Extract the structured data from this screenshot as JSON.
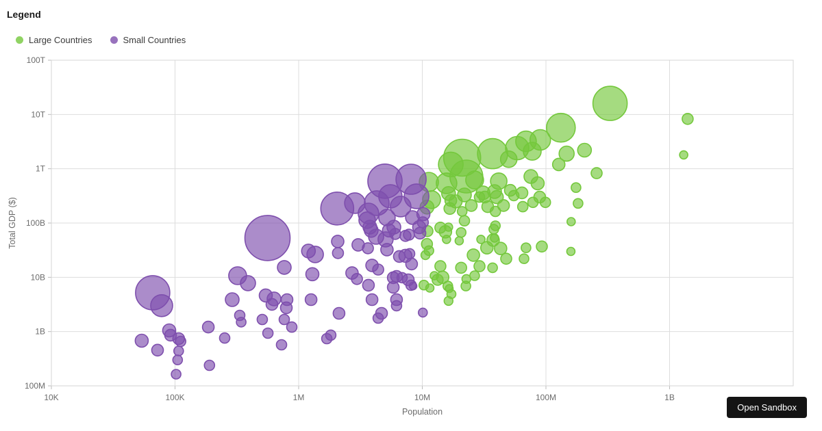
{
  "legend": {
    "title": "Legend"
  },
  "button": {
    "open_sandbox": "Open Sandbox"
  },
  "chart_data": {
    "type": "scatter",
    "subtype": "bubble-log-log",
    "xlabel": "Population",
    "ylabel": "Total GDP ($)",
    "grid": true,
    "legend_position": "top-left",
    "x_scale": "log",
    "y_scale": "log",
    "x_range": [
      10000,
      10000000000
    ],
    "y_range": [
      100000000,
      100000000000000
    ],
    "x_ticks": [
      {
        "label": "10K",
        "value": 10000
      },
      {
        "label": "100K",
        "value": 100000
      },
      {
        "label": "1M",
        "value": 1000000
      },
      {
        "label": "10M",
        "value": 10000000
      },
      {
        "label": "100M",
        "value": 100000000
      },
      {
        "label": "1B",
        "value": 1000000000
      }
    ],
    "y_ticks": [
      {
        "label": "100M",
        "value": 100000000.0
      },
      {
        "label": "1B",
        "value": 1000000000.0
      },
      {
        "label": "10B",
        "value": 10000000000.0
      },
      {
        "label": "100B",
        "value": 100000000000.0
      },
      {
        "label": "1T",
        "value": 1000000000000.0
      },
      {
        "label": "10T",
        "value": 10000000000000.0
      },
      {
        "label": "100T",
        "value": 100000000000000.0
      }
    ],
    "points_format": [
      "population",
      "gdp_usd",
      "radius_px"
    ],
    "series": [
      {
        "name": "Large Countries",
        "color": "#74c83c",
        "points": [
          [
            330000000.0,
            16000000000000.0,
            25
          ],
          [
            132000000.0,
            5700000000000.0,
            21
          ],
          [
            1400000000.0,
            8300000000000.0,
            8
          ],
          [
            1300000000.0,
            1800000000000.0,
            6
          ],
          [
            90000000.0,
            3400000000000.0,
            15
          ],
          [
            147000000.0,
            1900000000000.0,
            11
          ],
          [
            205000000.0,
            2200000000000.0,
            10
          ],
          [
            127000000.0,
            1200000000000.0,
            9
          ],
          [
            257000000.0,
            830000000000.0,
            8
          ],
          [
            175000000.0,
            450000000000.0,
            7
          ],
          [
            182000000.0,
            230000000000.0,
            7
          ],
          [
            160000000.0,
            106000000000.0,
            6
          ],
          [
            159000000.0,
            30000000000.0,
            6
          ],
          [
            99000000.0,
            240000000000.0,
            7.5
          ],
          [
            21000000.0,
            1600000000000.0,
            27
          ],
          [
            37000000.0,
            1900000000000.0,
            22
          ],
          [
            58500000.0,
            2400000000000.0,
            17
          ],
          [
            69000000.0,
            3200000000000.0,
            15
          ],
          [
            77500000.0,
            2100000000000.0,
            13
          ],
          [
            17000000.0,
            1200000000000.0,
            18
          ],
          [
            22700000.0,
            720000000000.0,
            24
          ],
          [
            50000000.0,
            1500000000000.0,
            12
          ],
          [
            26500000.0,
            620000000000.0,
            13
          ],
          [
            41500000.0,
            590000000000.0,
            12
          ],
          [
            31000000.0,
            360000000000.0,
            10
          ],
          [
            40000000.0,
            300000000000.0,
            9.5
          ],
          [
            51500000.0,
            400000000000.0,
            8.5
          ],
          [
            45400000.0,
            210000000000.0,
            8.5
          ],
          [
            55000000.0,
            320000000000.0,
            7.5
          ],
          [
            64000000.0,
            360000000000.0,
            8.5
          ],
          [
            75500000.0,
            720000000000.0,
            10
          ],
          [
            85700000.0,
            540000000000.0,
            9.5
          ],
          [
            89000000.0,
            300000000000.0,
            8.5
          ],
          [
            78500000.0,
            240000000000.0,
            7.5
          ],
          [
            65000000.0,
            200000000000.0,
            7.5
          ],
          [
            21900000.0,
            330000000000.0,
            10
          ],
          [
            18600000.0,
            250000000000.0,
            9.5
          ],
          [
            16300000.0,
            350000000000.0,
            10
          ],
          [
            24900000.0,
            210000000000.0,
            8.5
          ],
          [
            33800000.0,
            200000000000.0,
            8.5
          ],
          [
            29000000.0,
            300000000000.0,
            7.5
          ],
          [
            16700000.0,
            185000000000.0,
            8.5
          ],
          [
            39000000.0,
            164000000000.0,
            7.5
          ],
          [
            21000000.0,
            164000000000.0,
            7
          ],
          [
            38400000.0,
            380000000000.0,
            10
          ],
          [
            32000000.0,
            300000000000.0,
            8.5
          ],
          [
            11300000.0,
            570000000000.0,
            14
          ],
          [
            11900000.0,
            270000000000.0,
            13
          ],
          [
            10900000.0,
            196000000000.0,
            10
          ],
          [
            15700000.0,
            540000000000.0,
            15
          ],
          [
            17000000.0,
            260000000000.0,
            8.5
          ],
          [
            21900000.0,
            110000000000.0,
            7.5
          ],
          [
            16300000.0,
            84000000000.0,
            6
          ],
          [
            20600000.0,
            67000000000.0,
            7
          ],
          [
            19900000.0,
            47000000000.0,
            6
          ],
          [
            15700000.0,
            50000000000.0,
            6
          ],
          [
            29800000.0,
            50000000000.0,
            6
          ],
          [
            38400000.0,
            53000000000.0,
            6
          ],
          [
            39000000.0,
            89000000000.0,
            7
          ],
          [
            11000000.0,
            71000000000.0,
            8
          ],
          [
            14000000.0,
            82000000000.0,
            8
          ],
          [
            15400000.0,
            69000000000.0,
            9
          ],
          [
            10900000.0,
            41000000000.0,
            8
          ],
          [
            11300000.0,
            31000000000.0,
            7
          ],
          [
            10600000.0,
            25600000000.0,
            6.5
          ],
          [
            14000000.0,
            16000000000.0,
            8
          ],
          [
            14600000.0,
            10000000000.0,
            9
          ],
          [
            13300000.0,
            9000000000.0,
            8
          ],
          [
            16100000.0,
            6900000000.0,
            7
          ],
          [
            17200000.0,
            4900000000.0,
            6.5
          ],
          [
            22500000.0,
            6900000000.0,
            7
          ],
          [
            20600000.0,
            15000000000.0,
            8
          ],
          [
            25900000.0,
            25600000000.0,
            9
          ],
          [
            29000000.0,
            16000000000.0,
            8
          ],
          [
            26500000.0,
            10700000000.0,
            7
          ],
          [
            33300000.0,
            35000000000.0,
            9
          ],
          [
            37400000.0,
            48500000000.0,
            9
          ],
          [
            43000000.0,
            34000000000.0,
            9
          ],
          [
            47700000.0,
            22000000000.0,
            8
          ],
          [
            37000000.0,
            15000000000.0,
            7
          ],
          [
            66500000.0,
            22000000000.0,
            7
          ],
          [
            69000000.0,
            35000000000.0,
            7
          ],
          [
            92600000.0,
            37000000000.0,
            8
          ],
          [
            37900000.0,
            77000000000.0,
            7
          ],
          [
            10300000.0,
            7200000000.0,
            7
          ],
          [
            11500000.0,
            6350000000.0,
            6
          ],
          [
            12500000.0,
            10700000000.0,
            6
          ],
          [
            16500000.0,
            6200000000.0,
            5.7
          ],
          [
            16300000.0,
            3670000000.0,
            6.4
          ],
          [
            22700000.0,
            9300000000.0,
            6.4
          ]
        ]
      },
      {
        "name": "Small Countries",
        "color": "#7e4fad",
        "points": [
          [
            560000.0,
            53000000000.0,
            33
          ],
          [
            2050000.0,
            185000000000.0,
            24
          ],
          [
            4990000.0,
            590000000000.0,
            25
          ],
          [
            8110000.0,
            640000000000.0,
            22
          ],
          [
            8980000.0,
            311000000000.0,
            18
          ],
          [
            5520000.0,
            311000000000.0,
            17
          ],
          [
            4280000.0,
            233000000000.0,
            18
          ],
          [
            3670000.0,
            150000000000.0,
            15
          ],
          [
            6680000.0,
            201000000000.0,
            15
          ],
          [
            5180000.0,
            126000000000.0,
            12
          ],
          [
            5890000.0,
            84000000000.0,
            10
          ],
          [
            3770000.0,
            84000000000.0,
            10
          ],
          [
            5380000.0,
            73000000000.0,
            9.5
          ],
          [
            8320000.0,
            126000000000.0,
            10
          ],
          [
            9440000.0,
            84000000000.0,
            9.5
          ],
          [
            10200000.0,
            146000000000.0,
            9.5
          ],
          [
            2850000.0,
            233000000000.0,
            15
          ],
          [
            3580000.0,
            113000000000.0,
            12
          ],
          [
            3860000.0,
            73000000000.0,
            10
          ],
          [
            7310000.0,
            58000000000.0,
            8
          ],
          [
            6040000.0,
            63000000000.0,
            8
          ],
          [
            7800000.0,
            61000000000.0,
            8
          ],
          [
            9570000.0,
            65000000000.0,
            8.5
          ],
          [
            10100000.0,
            103000000000.0,
            8
          ],
          [
            8420000.0,
            6900000000.0,
            5.5
          ],
          [
            10100000.0,
            2240000000.0,
            6.5
          ],
          [
            66000.0,
            5200000000.0,
            25
          ],
          [
            78000.0,
            3000000000.0,
            16
          ],
          [
            53800.0,
            680000000.0,
            9.5
          ],
          [
            72200.0,
            455000000.0,
            8.5
          ],
          [
            89700.0,
            1050000000.0,
            9.5
          ],
          [
            92000.0,
            860000000.0,
            8.5
          ],
          [
            107000.0,
            740000000.0,
            8.5
          ],
          [
            111000.0,
            660000000.0,
            7.5
          ],
          [
            107000.0,
            440000000.0,
            7
          ],
          [
            105000.0,
            300000000.0,
            7
          ],
          [
            102000.0,
            164000000.0,
            7
          ],
          [
            186000.0,
            1210000000.0,
            8.5
          ],
          [
            190000.0,
            239000000.0,
            7.5
          ],
          [
            252000.0,
            760000000.0,
            7.5
          ],
          [
            290000.0,
            3880000000.0,
            10
          ],
          [
            334000.0,
            1990000000.0,
            7.5
          ],
          [
            343000.0,
            1490000000.0,
            7
          ],
          [
            321000.0,
            10700000000.0,
            13
          ],
          [
            389000.0,
            7800000000.0,
            11
          ],
          [
            508000.0,
            1670000000.0,
            7.5
          ],
          [
            542000.0,
            4620000000.0,
            9.5
          ],
          [
            564000.0,
            935000000.0,
            7.5
          ],
          [
            608000.0,
            3170000000.0,
            8.5
          ],
          [
            632000.0,
            4000000000.0,
            10
          ],
          [
            727000.0,
            571000000.0,
            7.5
          ],
          [
            765000.0,
            1670000000.0,
            7.5
          ],
          [
            765000.0,
            15200000000.0,
            10
          ],
          [
            795000.0,
            2740000000.0,
            8.5
          ],
          [
            805000.0,
            3880000000.0,
            8.5
          ],
          [
            880000.0,
            1210000000.0,
            7.5
          ],
          [
            1290000.0,
            11400000000.0,
            9.5
          ],
          [
            1260000.0,
            3880000000.0,
            8.5
          ],
          [
            1200000.0,
            30500000000.0,
            10
          ],
          [
            1360000.0,
            26400000000.0,
            12
          ],
          [
            1690000.0,
            740000000.0,
            7.5
          ],
          [
            1820000.0,
            860000000.0,
            7.5
          ],
          [
            2120000.0,
            2170000000.0,
            8.5
          ],
          [
            2070000.0,
            45800000000.0,
            9
          ],
          [
            2080000.0,
            28000000000.0,
            8
          ],
          [
            2700000.0,
            12000000000.0,
            9
          ],
          [
            2960000.0,
            9300000000.0,
            8
          ],
          [
            3030000.0,
            39600000000.0,
            9
          ],
          [
            3630000.0,
            34300000000.0,
            8
          ],
          [
            3670000.0,
            7150000000.0,
            8.5
          ],
          [
            3920000.0,
            3880000000.0,
            8.5
          ],
          [
            3920000.0,
            16600000000.0,
            9
          ],
          [
            4230000.0,
            56000000000.0,
            11
          ],
          [
            5050000.0,
            50000000000.0,
            11
          ],
          [
            4400000.0,
            13900000000.0,
            8
          ],
          [
            4400000.0,
            1770000000.0,
            7.5
          ],
          [
            4680000.0,
            2170000000.0,
            8.5
          ],
          [
            5180000.0,
            32300000000.0,
            9
          ],
          [
            5820000.0,
            9850000000.0,
            8.5
          ],
          [
            5820000.0,
            6550000000.0,
            8.5
          ],
          [
            6190000.0,
            10400000000.0,
            8.5
          ],
          [
            6860000.0,
            9850000000.0,
            7.5
          ],
          [
            6190000.0,
            3880000000.0,
            8.5
          ],
          [
            6190000.0,
            2990000000.0,
            7.5
          ],
          [
            6520000.0,
            24200000000.0,
            8.5
          ],
          [
            7310000.0,
            24900000000.0,
            9.5
          ],
          [
            7700000.0,
            9000000000.0,
            8.5
          ],
          [
            7900000.0,
            27200000000.0,
            7.5
          ],
          [
            8110000.0,
            7150000000.0,
            7.5
          ],
          [
            8200000.0,
            17600000000.0,
            8.5
          ]
        ]
      }
    ],
    "style": {
      "fill_opacity": 0.65,
      "grid_color": "#dddddd",
      "border_color": "#d5d5d5",
      "tick_color": "#6b6b6b",
      "axis_label_color": "#6a6a6a"
    }
  }
}
